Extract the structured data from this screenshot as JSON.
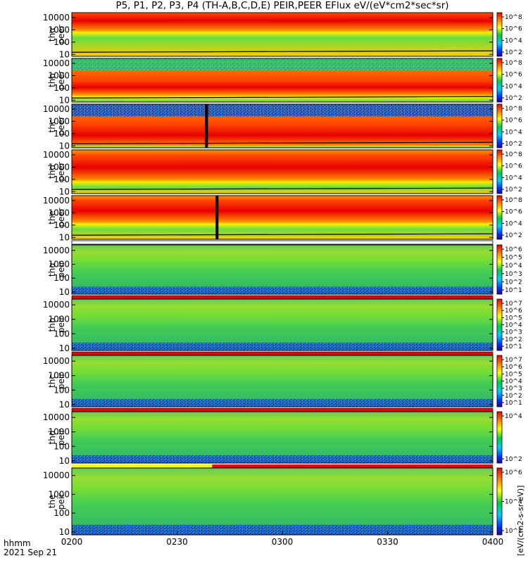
{
  "title": "P5, P1, P2, P3, P4 (TH-A,B,C,D,E) PEIR,PEER EFlux eV/(eV*cm2*sec*sr)",
  "footer": {
    "time_label": "hhmm",
    "date_label": "2021 Sep 21"
  },
  "colorbar_units": "[eV/(cm2-s-sr-eV)]",
  "colors": {
    "red": "#e8000b",
    "yellow": "#ffff00",
    "green_noise": "#33cc66",
    "blue_noise": "#1f5fd6",
    "black": "#000000"
  },
  "chart_data": {
    "type": "heatmap",
    "x": {
      "ticks": [
        "0200",
        "0230",
        "0300",
        "0330",
        "0400"
      ],
      "range": [
        "02:00",
        "04:00"
      ]
    },
    "y": {
      "scale": "log",
      "ticks": [
        "10",
        "100",
        "1000",
        "10000"
      ],
      "range_eV": [
        7,
        25000
      ]
    },
    "panels": [
      {
        "label": [
          "thα",
          "peer"
        ],
        "kind": "peer",
        "flux_band_eV": [
          1000,
          30000
        ],
        "peak_log_flux": 8,
        "colorbar_ticks": [
          "10^8",
          "10^6",
          "10^4",
          "10^2"
        ],
        "status_bar": "none"
      },
      {
        "label": [
          "thb",
          "peer"
        ],
        "kind": "peer",
        "flux_band_eV": [
          30,
          400
        ],
        "peak_log_flux": 8,
        "colorbar_ticks": [
          "10^8",
          "10^6",
          "10^4",
          "10^2"
        ],
        "status_bar": "none"
      },
      {
        "label": [
          "thc",
          "peer"
        ],
        "kind": "peer",
        "flux_band_eV": [
          8,
          600
        ],
        "peak_log_flux": 8,
        "colorbar_ticks": [
          "10^8",
          "10^6",
          "10^4",
          "10^2"
        ],
        "gap_time": "02:38",
        "status_bar": "none"
      },
      {
        "label": [
          "thd",
          "peer"
        ],
        "kind": "peer",
        "flux_band_eV": [
          100,
          8000
        ],
        "peak_log_flux": 8,
        "colorbar_ticks": [
          "10^8",
          "10^6",
          "10^4",
          "10^2"
        ],
        "status_bar": "none"
      },
      {
        "label": [
          "the",
          "peer"
        ],
        "kind": "peer",
        "flux_band_eV": [
          200,
          10000
        ],
        "peak_log_flux": 8,
        "colorbar_ticks": [
          "10^8",
          "10^6",
          "10^4",
          "10^2"
        ],
        "gap_time": "02:41",
        "status_bar": "white"
      },
      {
        "label": [
          "thα",
          "peir"
        ],
        "kind": "peir",
        "peak_log_flux": 6,
        "colorbar_ticks": [
          "10^6",
          "10^5",
          "10^4",
          "10^3",
          "10^2",
          "10^1"
        ],
        "status_bar": "red"
      },
      {
        "label": [
          "thb",
          "peir"
        ],
        "kind": "peir",
        "peak_log_flux": 7,
        "colorbar_ticks": [
          "10^7",
          "10^6",
          "10^5",
          "10^4",
          "10^3",
          "10^2",
          "10^1"
        ],
        "status_bar": "red"
      },
      {
        "label": [
          "thc",
          "peir"
        ],
        "kind": "peir",
        "peak_log_flux": 7,
        "colorbar_ticks": [
          "10^7",
          "10^6",
          "10^5",
          "10^4",
          "10^3",
          "10^2",
          "10^1"
        ],
        "status_bar": "red"
      },
      {
        "label": [
          "thd",
          "peir"
        ],
        "kind": "peir",
        "peak_log_flux": 4,
        "colorbar_ticks": [
          "10^4",
          "10^2"
        ],
        "status_bar": "yellow-then-red",
        "status_change_time": "02:40"
      },
      {
        "label": [
          "the",
          "peir"
        ],
        "kind": "peir",
        "peak_log_flux": 6,
        "colorbar_ticks": [
          "10^6",
          "10^4",
          "10^2"
        ],
        "status_bar": "none"
      }
    ]
  }
}
